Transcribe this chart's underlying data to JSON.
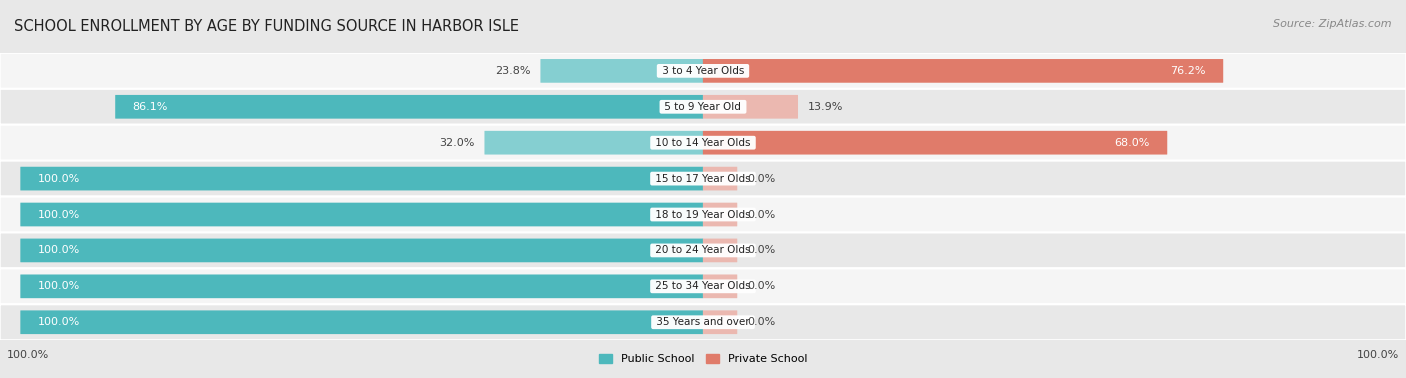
{
  "title": "SCHOOL ENROLLMENT BY AGE BY FUNDING SOURCE IN HARBOR ISLE",
  "source": "Source: ZipAtlas.com",
  "categories": [
    "3 to 4 Year Olds",
    "5 to 9 Year Old",
    "10 to 14 Year Olds",
    "15 to 17 Year Olds",
    "18 to 19 Year Olds",
    "20 to 24 Year Olds",
    "25 to 34 Year Olds",
    "35 Years and over"
  ],
  "public_values": [
    23.8,
    86.1,
    32.0,
    100.0,
    100.0,
    100.0,
    100.0,
    100.0
  ],
  "private_values": [
    76.2,
    13.9,
    68.0,
    0.0,
    0.0,
    0.0,
    0.0,
    0.0
  ],
  "private_stub": 5.0,
  "public_color": "#4db8bc",
  "public_color_light": "#85cfd1",
  "private_color": "#e07b6a",
  "private_color_light": "#ebb8b0",
  "public_label": "Public School",
  "private_label": "Private School",
  "bg_color": "#e8e8e8",
  "row_bg_colors": [
    "#f5f5f5",
    "#e8e8e8"
  ],
  "label_color_dark": "#444444",
  "label_color_white": "#ffffff",
  "axis_label_left": "100.0%",
  "axis_label_right": "100.0%",
  "title_fontsize": 10.5,
  "source_fontsize": 8,
  "bar_label_fontsize": 8,
  "cat_label_fontsize": 7.5
}
